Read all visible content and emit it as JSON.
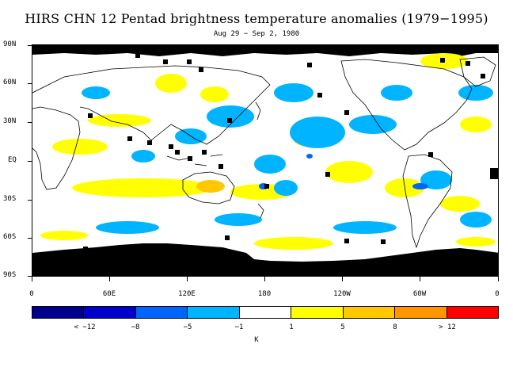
{
  "title": "HIRS CHN 12 Pentad brightness temperature anomalies (1979−1995)",
  "subtitle": "Aug 29 − Sep 2, 1980",
  "lat_labels": [
    "90N",
    "60N",
    "30N",
    "EQ",
    "30S",
    "60S",
    "90S"
  ],
  "lon_labels": [
    "0",
    "60E",
    "120E",
    "180",
    "120W",
    "60W",
    "0"
  ],
  "colorbar": {
    "colors": [
      "#00008c",
      "#0000cd",
      "#0064ff",
      "#00b4ff",
      "#ffffff",
      "#ffff00",
      "#ffc800",
      "#ff9600",
      "#ff0000"
    ],
    "labels": [
      "< −12",
      "−8",
      "−5",
      "−1",
      "1",
      "5",
      "8",
      "> 12"
    ],
    "units": "K"
  },
  "chart_data": {
    "type": "heatmap",
    "title": "HIRS CHN 12 Pentad brightness temperature anomalies (1979−1995)",
    "subtitle": "Aug 29 − Sep 2, 1980",
    "xlabel": "",
    "ylabel": "",
    "x_ticks": [
      "0",
      "60E",
      "120E",
      "180",
      "120W",
      "60W",
      "0"
    ],
    "y_ticks": [
      "90N",
      "60N",
      "30N",
      "EQ",
      "30S",
      "60S",
      "90S"
    ],
    "color_bins_K": [
      -12,
      -8,
      -5,
      -1,
      1,
      5,
      8,
      12
    ],
    "color_scale_labels": [
      "< −12",
      "−8",
      "−5",
      "−1",
      "1",
      "5",
      "8",
      "> 12"
    ],
    "units": "K",
    "missing_data_color": "#000000"
  }
}
